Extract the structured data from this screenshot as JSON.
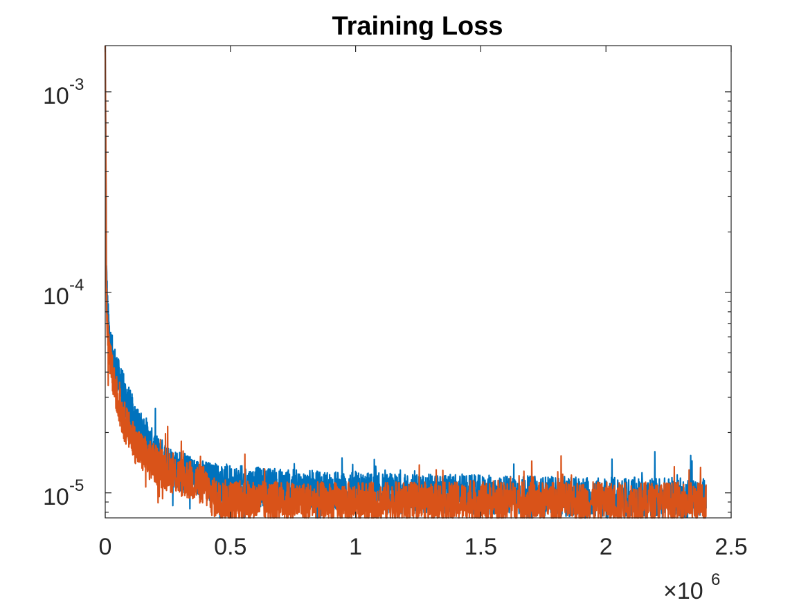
{
  "chart_data": {
    "type": "line",
    "title": "Training Loss",
    "xlabel": "",
    "ylabel": "",
    "x_exponent_label": "×10",
    "x_exponent": "6",
    "xlim": [
      0,
      2500000
    ],
    "ylim": [
      7.5e-06,
      0.0017
    ],
    "yscale": "log",
    "grid": false,
    "legend": "none",
    "x_ticks": [
      {
        "value": 0,
        "label": "0"
      },
      {
        "value": 500000,
        "label": "0.5"
      },
      {
        "value": 1000000,
        "label": "1"
      },
      {
        "value": 1500000,
        "label": "1.5"
      },
      {
        "value": 2000000,
        "label": "2"
      },
      {
        "value": 2500000,
        "label": "2.5"
      }
    ],
    "y_ticks": [
      {
        "value": 1e-05,
        "base": "10",
        "exp": "-5"
      },
      {
        "value": 0.0001,
        "base": "10",
        "exp": "-4"
      },
      {
        "value": 0.001,
        "base": "10",
        "exp": "-3"
      }
    ],
    "series": [
      {
        "color": "#0072BD",
        "x": [
          0,
          5000,
          10000,
          20000,
          30000,
          50000,
          75000,
          100000,
          125000,
          150000,
          175000,
          200000,
          250000,
          300000,
          350000,
          400000,
          450000,
          500000,
          600000,
          700000,
          800000,
          1000000,
          1200000,
          1400000,
          1600000,
          1800000,
          2000000,
          2200000,
          2400000
        ],
        "y": [
          0.0017,
          0.00012,
          7.5e-05,
          5.5e-05,
          4.7e-05,
          3.8e-05,
          3.1e-05,
          2.6e-05,
          2.2e-05,
          1.95e-05,
          1.75e-05,
          1.58e-05,
          1.4e-05,
          1.28e-05,
          1.2e-05,
          1.15e-05,
          1.12e-05,
          1.1e-05,
          1.07e-05,
          1.05e-05,
          1.03e-05,
          1.01e-05,
          9.9e-06,
          9.8e-06,
          9.7e-06,
          9.6e-06,
          9.5e-06,
          9.5e-06,
          9.4e-06
        ],
        "noise": 0.1
      },
      {
        "color": "#D95319",
        "x": [
          0,
          5000,
          10000,
          20000,
          30000,
          50000,
          75000,
          100000,
          125000,
          150000,
          175000,
          200000,
          250000,
          300000,
          350000,
          400000,
          425000,
          450000,
          500000,
          600000,
          700000,
          800000,
          1000000,
          1200000,
          1400000,
          1600000,
          1800000,
          2000000,
          2200000,
          2400000
        ],
        "y": [
          0.0017,
          9e-05,
          6e-05,
          4.5e-05,
          3.8e-05,
          2.9e-05,
          2.3e-05,
          1.95e-05,
          1.72e-05,
          1.57e-05,
          1.46e-05,
          1.38e-05,
          1.28e-05,
          1.2e-05,
          1.14e-05,
          1.08e-05,
          9.6e-06,
          9.3e-06,
          9.2e-06,
          9.1e-06,
          9.1e-06,
          9e-06,
          9e-06,
          9e-06,
          9e-06,
          9e-06,
          9e-06,
          9e-06,
          9e-06,
          9e-06
        ],
        "noise": 0.1
      }
    ]
  }
}
